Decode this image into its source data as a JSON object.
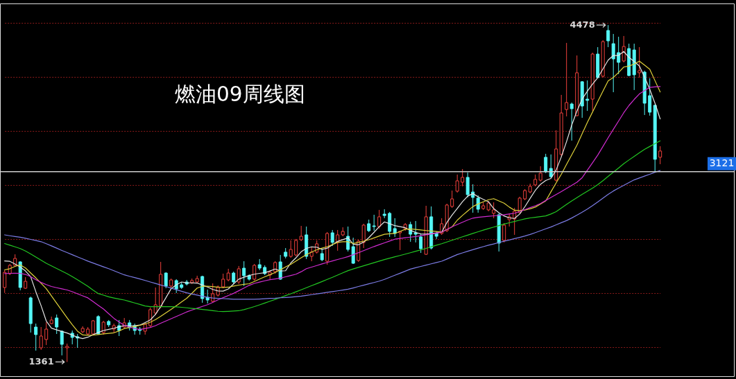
{
  "chart_data": {
    "type": "candlestick",
    "title": "燃油09周线图",
    "categories": [
      null,
      null,
      null,
      null,
      null,
      null,
      null,
      null,
      null,
      null,
      null,
      null,
      null,
      null,
      null,
      null,
      null,
      null,
      null,
      null,
      null,
      null,
      null,
      null,
      null,
      null,
      null,
      null,
      null,
      null,
      null,
      null,
      null,
      null,
      null,
      null,
      null,
      null,
      null,
      null,
      null,
      null,
      null,
      null,
      null,
      null,
      null,
      null,
      null,
      null,
      null,
      null,
      null,
      null,
      null,
      null,
      null,
      null,
      null,
      null,
      null,
      null,
      null,
      null,
      null,
      null,
      null,
      null,
      null,
      null,
      null,
      null,
      null,
      null,
      null,
      null,
      null,
      null,
      null,
      null,
      null,
      null,
      null,
      null,
      null,
      null,
      null,
      null,
      null,
      null,
      null,
      null,
      null,
      null,
      null,
      null,
      null,
      null,
      null,
      null,
      null,
      null,
      null,
      null,
      null,
      null,
      null,
      null,
      null,
      null,
      null,
      null,
      null,
      null,
      null,
      null,
      null,
      null,
      null,
      null,
      null,
      null,
      null,
      null,
      null,
      null,
      null
    ],
    "ohlc": [
      [
        2050,
        2210,
        2000,
        2190
      ],
      [
        2178,
        2268,
        2165,
        2255
      ],
      [
        2255,
        2357,
        2249,
        2319
      ],
      [
        2287,
        2293,
        2024,
        2050
      ],
      [
        2043,
        2146,
        2037,
        2107
      ],
      [
        1954,
        1966,
        1633,
        1716
      ],
      [
        1684,
        1716,
        1466,
        1614
      ],
      [
        1492,
        1684,
        1473,
        1601
      ],
      [
        1569,
        1729,
        1518,
        1665
      ],
      [
        1716,
        1781,
        1710,
        1749
      ],
      [
        1768,
        1800,
        1620,
        1684
      ],
      [
        1646,
        1652,
        1422,
        1524
      ],
      [
        1492,
        1531,
        1361,
        1505
      ],
      [
        1627,
        1652,
        1524,
        1588
      ],
      [
        1595,
        1620,
        1492,
        1582
      ],
      [
        1640,
        1691,
        1627,
        1672
      ],
      [
        1620,
        1684,
        1608,
        1665
      ],
      [
        1620,
        1749,
        1614,
        1742
      ],
      [
        1781,
        1793,
        1614,
        1620
      ],
      [
        1633,
        1742,
        1614,
        1729
      ],
      [
        1736,
        1749,
        1684,
        1704
      ],
      [
        1665,
        1716,
        1633,
        1697
      ],
      [
        1697,
        1749,
        1601,
        1652
      ],
      [
        1684,
        1768,
        1672,
        1723
      ],
      [
        1723,
        1749,
        1652,
        1678
      ],
      [
        1697,
        1716,
        1614,
        1652
      ],
      [
        1665,
        1684,
        1614,
        1652
      ],
      [
        1646,
        1723,
        1614,
        1710
      ],
      [
        1697,
        1864,
        1684,
        1845
      ],
      [
        1813,
        2050,
        1793,
        1890
      ],
      [
        1877,
        2287,
        1858,
        2172
      ],
      [
        2184,
        2191,
        2043,
        2063
      ],
      [
        2063,
        2133,
        2043,
        2120
      ],
      [
        2114,
        2127,
        1999,
        2037
      ],
      [
        2075,
        2095,
        2037,
        2050
      ],
      [
        2101,
        2120,
        2069,
        2082
      ],
      [
        2095,
        2133,
        2082,
        2114
      ],
      [
        2101,
        2159,
        2095,
        2133
      ],
      [
        2152,
        2159,
        1909,
        1947
      ],
      [
        1960,
        2031,
        1902,
        1934
      ],
      [
        1922,
        2088,
        1909,
        1992
      ],
      [
        1979,
        2069,
        1966,
        2056
      ],
      [
        2056,
        2178,
        2043,
        2127
      ],
      [
        2120,
        2223,
        2107,
        2184
      ],
      [
        2184,
        2197,
        2082,
        2101
      ],
      [
        2101,
        2249,
        2082,
        2223
      ],
      [
        2229,
        2293,
        2063,
        2159
      ],
      [
        2159,
        2172,
        2114,
        2127
      ],
      [
        2127,
        2268,
        2114,
        2255
      ],
      [
        2261,
        2313,
        2210,
        2229
      ],
      [
        2236,
        2255,
        2165,
        2178
      ],
      [
        2165,
        2210,
        2127,
        2191
      ],
      [
        2197,
        2293,
        2178,
        2281
      ],
      [
        2287,
        2351,
        2120,
        2127
      ],
      [
        2377,
        2415,
        2319,
        2338
      ],
      [
        2338,
        2486,
        2325,
        2402
      ],
      [
        2351,
        2499,
        2338,
        2486
      ],
      [
        2492,
        2620,
        2479,
        2524
      ],
      [
        2537,
        2614,
        2313,
        2338
      ],
      [
        2338,
        2422,
        2293,
        2377
      ],
      [
        2377,
        2486,
        2364,
        2454
      ],
      [
        2364,
        2409,
        2293,
        2306
      ],
      [
        2293,
        2563,
        2261,
        2550
      ],
      [
        2556,
        2582,
        2434,
        2467
      ],
      [
        2467,
        2582,
        2390,
        2537
      ],
      [
        2537,
        2607,
        2524,
        2569
      ],
      [
        2524,
        2614,
        2383,
        2402
      ],
      [
        2428,
        2511,
        2268,
        2274
      ],
      [
        2300,
        2492,
        2287,
        2479
      ],
      [
        2467,
        2640,
        2415,
        2627
      ],
      [
        2640,
        2678,
        2563,
        2575
      ],
      [
        2620,
        2723,
        2575,
        2614
      ],
      [
        2614,
        2768,
        2595,
        2704
      ],
      [
        2729,
        2774,
        2691,
        2716
      ],
      [
        2736,
        2749,
        2518,
        2569
      ],
      [
        2595,
        2691,
        2518,
        2550
      ],
      [
        2556,
        2575,
        2396,
        2569
      ],
      [
        2595,
        2646,
        2575,
        2633
      ],
      [
        2633,
        2659,
        2473,
        2543
      ],
      [
        2556,
        2665,
        2467,
        2543
      ],
      [
        2518,
        2543,
        2370,
        2409
      ],
      [
        2357,
        2806,
        2351,
        2704
      ],
      [
        2704,
        2800,
        2402,
        2415
      ],
      [
        2550,
        2569,
        2499,
        2524
      ],
      [
        2550,
        2691,
        2537,
        2640
      ],
      [
        2575,
        2825,
        2563,
        2813
      ],
      [
        2800,
        2947,
        2787,
        2870
      ],
      [
        2941,
        3095,
        2928,
        3037
      ],
      [
        3024,
        3146,
        2986,
        3069
      ],
      [
        3069,
        3114,
        2883,
        2909
      ],
      [
        2934,
        3005,
        2742,
        2883
      ],
      [
        2877,
        2902,
        2742,
        2774
      ],
      [
        2781,
        2838,
        2768,
        2806
      ],
      [
        2768,
        2851,
        2755,
        2832
      ],
      [
        2736,
        2838,
        2691,
        2768
      ],
      [
        2723,
        2736,
        2383,
        2460
      ],
      [
        2486,
        2646,
        2467,
        2627
      ],
      [
        2678,
        2736,
        2614,
        2704
      ],
      [
        2684,
        2787,
        2537,
        2755
      ],
      [
        2742,
        2890,
        2736,
        2877
      ],
      [
        2870,
        2960,
        2858,
        2947
      ],
      [
        2934,
        3011,
        2922,
        2986
      ],
      [
        2999,
        3095,
        2986,
        3050
      ],
      [
        3043,
        3172,
        3031,
        3108
      ],
      [
        3255,
        3287,
        3108,
        3120
      ],
      [
        3152,
        3281,
        3063,
        3075
      ],
      [
        3043,
        3505,
        3031,
        3332
      ],
      [
        3281,
        3832,
        3261,
        3665
      ],
      [
        3697,
        4313,
        3633,
        3761
      ],
      [
        3748,
        3761,
        3409,
        3704
      ],
      [
        3640,
        4197,
        3633,
        4037
      ],
      [
        3954,
        3960,
        3620,
        3729
      ],
      [
        3793,
        3966,
        3684,
        3781
      ],
      [
        3793,
        4223,
        3684,
        4210
      ],
      [
        4210,
        4274,
        3986,
        3992
      ],
      [
        4005,
        4338,
        3992,
        4325
      ],
      [
        4428,
        4478,
        4274,
        4332
      ],
      [
        4306,
        4396,
        3857,
        4165
      ],
      [
        4223,
        4370,
        4024,
        4133
      ],
      [
        4146,
        4377,
        4133,
        4280
      ],
      [
        4261,
        4306,
        4005,
        4011
      ],
      [
        4248,
        4306,
        3877,
        4018
      ],
      [
        4037,
        4274,
        3992,
        4056
      ],
      [
        4043,
        4056,
        3646,
        3755
      ],
      [
        3825,
        3986,
        3640,
        3672
      ],
      [
        3736,
        3742,
        3121,
        3236
      ],
      [
        3255,
        3357,
        3191,
        3313
      ]
    ],
    "value_labels": [
      null,
      null,
      null,
      null,
      null,
      null,
      null,
      null,
      null,
      null,
      null,
      null,
      "1361",
      null,
      null,
      null,
      null,
      null,
      null,
      null,
      null,
      null,
      null,
      null,
      null,
      null,
      null,
      null,
      null,
      null,
      null,
      null,
      null,
      null,
      null,
      null,
      null,
      null,
      null,
      null,
      null,
      null,
      null,
      null,
      null,
      null,
      null,
      null,
      null,
      null,
      null,
      null,
      null,
      null,
      null,
      null,
      null,
      null,
      null,
      null,
      null,
      null,
      null,
      null,
      null,
      null,
      null,
      null,
      null,
      null,
      null,
      null,
      null,
      null,
      null,
      null,
      null,
      null,
      null,
      null,
      null,
      null,
      null,
      null,
      null,
      null,
      null,
      null,
      null,
      null,
      null,
      null,
      null,
      null,
      null,
      null,
      null,
      null,
      null,
      null,
      null,
      null,
      null,
      null,
      null,
      null,
      null,
      null,
      null,
      null,
      null,
      null,
      null,
      null,
      null,
      null,
      "4478",
      null,
      null,
      null,
      null,
      null,
      null,
      null,
      null,
      null,
      null
    ],
    "colors": [
      "#f0403c",
      "#f0403c",
      "#f0403c",
      "#54f6f6",
      "#f0403c",
      "#54f6f6",
      "#54f6f6",
      "#f0403c",
      "#f0403c",
      "#f0403c",
      "#54f6f6",
      "#54f6f6",
      "#f0403c",
      "#54f6f6",
      "#54f6f6",
      "#f0403c",
      "#f0403c",
      "#f0403c",
      "#54f6f6",
      "#f0403c",
      "#54f6f6",
      "#f0403c",
      "#54f6f6",
      "#f0403c",
      "#54f6f6",
      "#54f6f6",
      "#54f6f6",
      "#f0403c",
      "#f0403c",
      "#f0403c",
      "#f0403c",
      "#54f6f6",
      "#f0403c",
      "#54f6f6",
      "#54f6f6",
      "#54f6f6",
      "#f0403c",
      "#f0403c",
      "#54f6f6",
      "#54f6f6",
      "#f0403c",
      "#f0403c",
      "#f0403c",
      "#f0403c",
      "#54f6f6",
      "#f0403c",
      "#54f6f6",
      "#54f6f6",
      "#f0403c",
      "#54f6f6",
      "#54f6f6",
      "#f0403c",
      "#f0403c",
      "#54f6f6",
      "#54f6f6",
      "#f0403c",
      "#f0403c",
      "#f0403c",
      "#54f6f6",
      "#f0403c",
      "#f0403c",
      "#54f6f6",
      "#f0403c",
      "#54f6f6",
      "#f0403c",
      "#f0403c",
      "#54f6f6",
      "#54f6f6",
      "#f0403c",
      "#f0403c",
      "#54f6f6",
      "#54f6f6",
      "#f0403c",
      "#54f6f6",
      "#54f6f6",
      "#54f6f6",
      "#f0403c",
      "#f0403c",
      "#54f6f6",
      "#54f6f6",
      "#54f6f6",
      "#f0403c",
      "#54f6f6",
      "#54f6f6",
      "#f0403c",
      "#f0403c",
      "#f0403c",
      "#f0403c",
      "#f0403c",
      "#54f6f6",
      "#54f6f6",
      "#54f6f6",
      "#f0403c",
      "#f0403c",
      "#f0403c",
      "#54f6f6",
      "#f0403c",
      "#f0403c",
      "#f0403c",
      "#f0403c",
      "#f0403c",
      "#f0403c",
      "#f0403c",
      "#f0403c",
      "#54f6f6",
      "#54f6f6",
      "#f0403c",
      "#f0403c",
      "#f0403c",
      "#54f6f6",
      "#f0403c",
      "#54f6f6",
      "#54f6f6",
      "#f0403c",
      "#54f6f6",
      "#f0403c",
      "#54f6f6",
      "#54f6f6",
      "#54f6f6",
      "#f0403c",
      "#54f6f6",
      "#54f6f6",
      "#f0403c",
      "#54f6f6",
      "#54f6f6",
      "#54f6f6",
      "#f0403c"
    ],
    "series": [
      {
        "type": "line",
        "color": "#e6e6e6",
        "values": [
          2295,
          2292,
          2268,
          2238,
          2203,
          2150,
          2010,
          1882,
          1740,
          1674,
          1658,
          1643,
          1629,
          1610,
          1589,
          1578,
          1590,
          1614,
          1634,
          1652,
          1663,
          1673,
          1687,
          1697,
          1697,
          1697,
          1702,
          1726,
          1750,
          1802,
          1874,
          1956,
          2039,
          2075,
          2101,
          2094,
          2093,
          2091,
          2073,
          2054,
          2032,
          2018,
          2017,
          2037,
          2083,
          2127,
          2145,
          2161,
          2173,
          2181,
          2187,
          2203,
          2221,
          2203,
          2205,
          2277,
          2325,
          2381,
          2412,
          2426,
          2423,
          2402,
          2414,
          2446,
          2477,
          2493,
          2509,
          2451,
          2445,
          2469,
          2511,
          2561,
          2613,
          2657,
          2640,
          2622,
          2613,
          2603,
          2579,
          2559,
          2546,
          2544,
          2549,
          2555,
          2563,
          2651,
          2720,
          2781,
          2844,
          2895,
          2919,
          2889,
          2865,
          2843,
          2780,
          2742,
          2712,
          2694,
          2689,
          2730,
          2798,
          2874,
          2949,
          3005,
          3040,
          3059,
          3137,
          3259,
          3400,
          3553,
          3683,
          3794,
          3866,
          3932,
          3992,
          4072,
          4154,
          4197,
          4197,
          4234,
          4179,
          4141,
          4099,
          3997,
          3883,
          3755,
          3609
        ]
      },
      {
        "type": "line",
        "color": "#e0d23a",
        "values": [
          2213,
          2224,
          2245,
          2259,
          2231,
          2184,
          2139,
          2089,
          2039,
          1972,
          1904,
          1837,
          1770,
          1706,
          1646,
          1611,
          1608,
          1609,
          1615,
          1621,
          1626,
          1631,
          1648,
          1670,
          1680,
          1690,
          1700,
          1713,
          1729,
          1753,
          1783,
          1815,
          1847,
          1881,
          1916,
          1950,
          1997,
          2045,
          2061,
          2061,
          2058,
          2052,
          2050,
          2053,
          2063,
          2072,
          2079,
          2085,
          2106,
          2128,
          2149,
          2169,
          2189,
          2214,
          2240,
          2265,
          2295,
          2325,
          2354,
          2378,
          2399,
          2414,
          2428,
          2447,
          2467,
          2473,
          2473,
          2458,
          2467,
          2479,
          2492,
          2509,
          2526,
          2542,
          2547,
          2550,
          2569,
          2589,
          2592,
          2587,
          2582,
          2577,
          2573,
          2568,
          2563,
          2587,
          2611,
          2673,
          2717,
          2758,
          2799,
          2823,
          2843,
          2862,
          2872,
          2851,
          2830,
          2794,
          2765,
          2762,
          2766,
          2778,
          2794,
          2822,
          2851,
          2935,
          3018,
          3098,
          3189,
          3277,
          3367,
          3472,
          3577,
          3674,
          3771,
          3867,
          3962,
          3994,
          4039,
          4090,
          4099,
          4117,
          4144,
          4107,
          4069,
          3964,
          3859
        ]
      },
      {
        "type": "line",
        "color": "#d22cd2",
        "values": [
          2179,
          2181,
          2182,
          2181,
          2171,
          2151,
          2122,
          2097,
          2077,
          2059,
          2048,
          2038,
          2027,
          2011,
          1992,
          1973,
          1954,
          1920,
          1885,
          1851,
          1808,
          1765,
          1730,
          1700,
          1684,
          1670,
          1661,
          1670,
          1680,
          1697,
          1719,
          1740,
          1761,
          1782,
          1803,
          1824,
          1841,
          1858,
          1875,
          1891,
          1912,
          1936,
          1956,
          1976,
          1996,
          2020,
          2045,
          2070,
          2088,
          2100,
          2112,
          2122,
          2129,
          2137,
          2149,
          2161,
          2173,
          2196,
          2224,
          2239,
          2253,
          2268,
          2282,
          2296,
          2309,
          2322,
          2336,
          2353,
          2372,
          2391,
          2410,
          2429,
          2446,
          2463,
          2480,
          2497,
          2504,
          2510,
          2516,
          2522,
          2530,
          2538,
          2546,
          2554,
          2563,
          2587,
          2612,
          2633,
          2654,
          2675,
          2692,
          2699,
          2704,
          2709,
          2713,
          2718,
          2723,
          2730,
          2737,
          2753,
          2771,
          2789,
          2806,
          2827,
          2855,
          2883,
          2910,
          2938,
          2966,
          2995,
          3024,
          3066,
          3135,
          3204,
          3275,
          3355,
          3436,
          3514,
          3590,
          3667,
          3734,
          3790,
          3841,
          3872,
          3902,
          3906,
          3909
        ]
      },
      {
        "type": "line",
        "color": "#22c822",
        "values": [
          2457,
          2441,
          2426,
          2410,
          2388,
          2360,
          2331,
          2303,
          2274,
          2250,
          2226,
          2202,
          2178,
          2150,
          2121,
          2091,
          2061,
          2025,
          1994,
          1979,
          1964,
          1953,
          1943,
          1934,
          1921,
          1907,
          1893,
          1879,
          1872,
          1872,
          1872,
          1872,
          1872,
          1871,
          1867,
          1862,
          1857,
          1853,
          1847,
          1842,
          1836,
          1830,
          1827,
          1829,
          1832,
          1835,
          1845,
          1859,
          1873,
          1889,
          1906,
          1923,
          1940,
          1957,
          1975,
          1992,
          2010,
          2029,
          2048,
          2067,
          2086,
          2105,
          2125,
          2144,
          2165,
          2186,
          2206,
          2222,
          2236,
          2251,
          2265,
          2280,
          2294,
          2308,
          2321,
          2334,
          2346,
          2359,
          2372,
          2385,
          2398,
          2412,
          2427,
          2441,
          2455,
          2471,
          2487,
          2503,
          2519,
          2534,
          2550,
          2566,
          2581,
          2595,
          2609,
          2623,
          2637,
          2649,
          2661,
          2673,
          2685,
          2694,
          2700,
          2706,
          2712,
          2730,
          2752,
          2785,
          2819,
          2851,
          2881,
          2912,
          2941,
          2970,
          3001,
          3039,
          3078,
          3117,
          3156,
          3195,
          3230,
          3263,
          3296,
          3329,
          3355,
          3381,
          3407
        ]
      },
      {
        "type": "line",
        "color": "#7c7ce6",
        "values": [
          2537,
          2529,
          2522,
          2515,
          2506,
          2495,
          2485,
          2474,
          2455,
          2435,
          2414,
          2393,
          2373,
          2353,
          2333,
          2314,
          2294,
          2276,
          2259,
          2241,
          2224,
          2205,
          2186,
          2167,
          2154,
          2142,
          2129,
          2115,
          2101,
          2087,
          2073,
          2059,
          2044,
          2030,
          2015,
          2001,
          1990,
          1980,
          1969,
          1959,
          1953,
          1950,
          1947,
          1944,
          1941,
          1941,
          1941,
          1941,
          1941,
          1943,
          1946,
          1949,
          1951,
          1955,
          1958,
          1961,
          1965,
          1970,
          1977,
          1984,
          1991,
          1998,
          2005,
          2012,
          2019,
          2026,
          2034,
          2046,
          2059,
          2071,
          2084,
          2096,
          2109,
          2125,
          2144,
          2163,
          2182,
          2201,
          2220,
          2233,
          2245,
          2257,
          2269,
          2281,
          2293,
          2313,
          2334,
          2355,
          2370,
          2385,
          2400,
          2414,
          2428,
          2441,
          2453,
          2466,
          2478,
          2490,
          2502,
          2514,
          2526,
          2541,
          2558,
          2575,
          2593,
          2610,
          2630,
          2650,
          2669,
          2693,
          2720,
          2747,
          2775,
          2807,
          2842,
          2877,
          2912,
          2943,
          2969,
          2995,
          3021,
          3046,
          3063,
          3081,
          3098,
          3116,
          3133
        ]
      }
    ],
    "ref_lines": [
      {
        "axis": "y",
        "value": 3121,
        "label": "3121",
        "color": "#cfcfcf"
      }
    ],
    "ylim": [
      1229,
      4678
    ],
    "yticks": [
      {
        "value": 1500,
        "label": null
      },
      {
        "value": 2000,
        "label": null
      },
      {
        "value": 2500,
        "label": null
      },
      {
        "value": 3000,
        "label": null
      },
      {
        "value": 3500,
        "label": null
      },
      {
        "value": 4000,
        "label": null
      },
      {
        "value": 4500,
        "label": null
      }
    ],
    "grid": "y",
    "marker": "none",
    "line_style": "solid"
  }
}
